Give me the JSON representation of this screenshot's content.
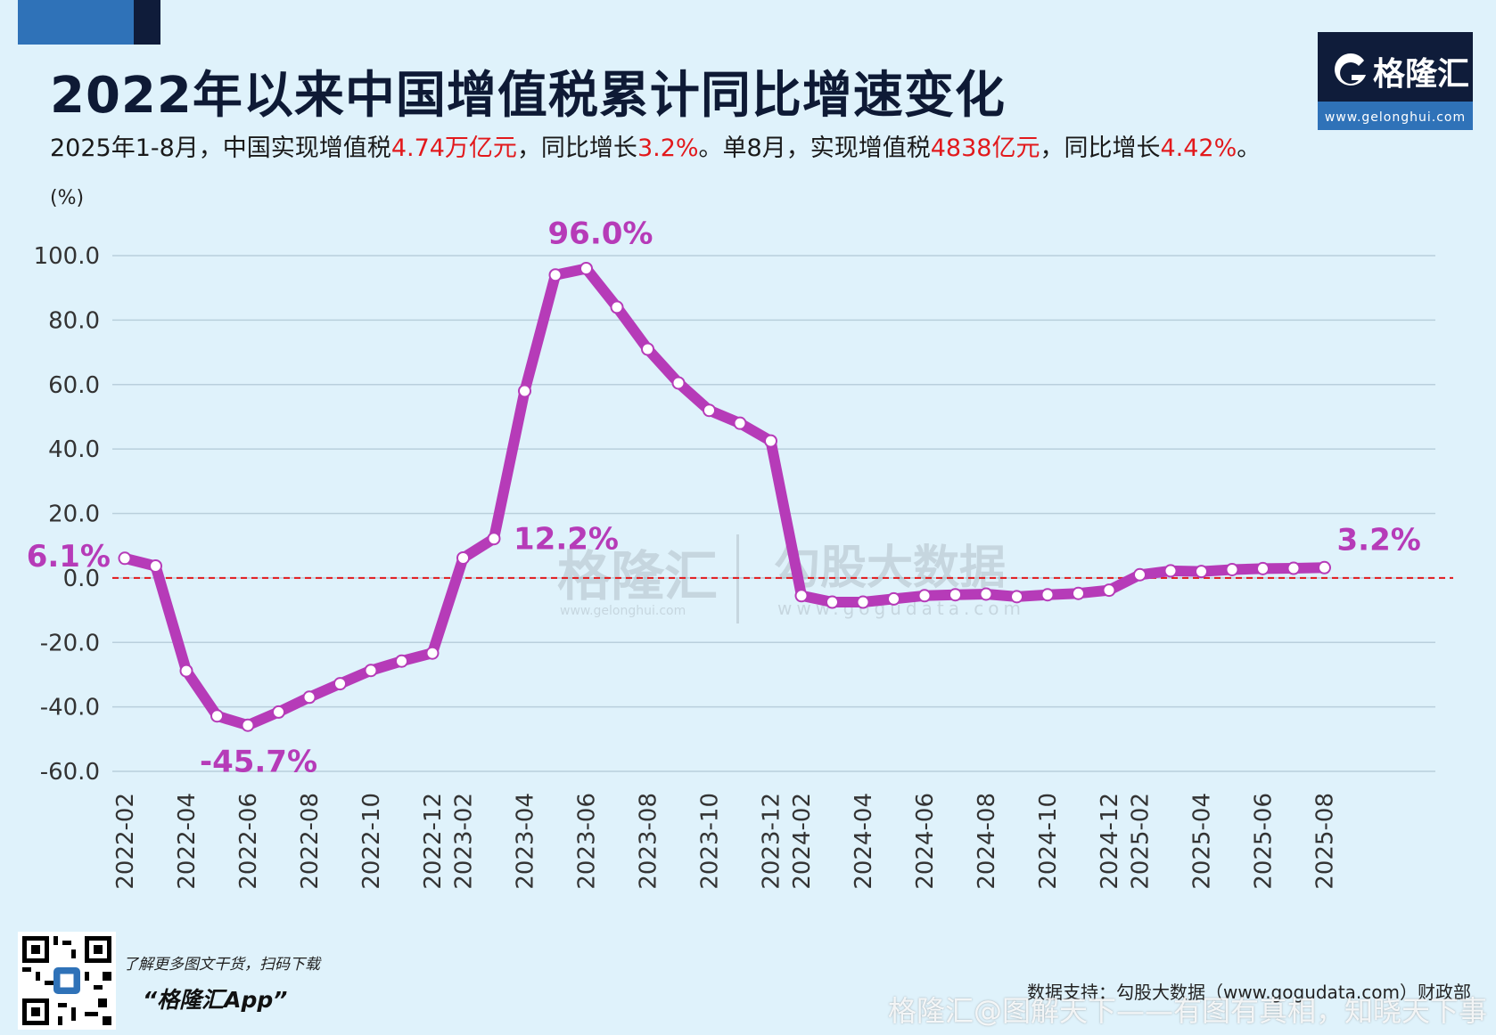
{
  "header": {
    "title": "2022年以来中国增值税累计同比增速变化",
    "subtitle_parts": [
      {
        "text": "2025年1-8月，中国实现增值税",
        "red": false
      },
      {
        "text": "4.74万亿元",
        "red": true
      },
      {
        "text": "，同比增长",
        "red": false
      },
      {
        "text": "3.2%",
        "red": true
      },
      {
        "text": "。单8月，实现增值税",
        "red": false
      },
      {
        "text": "4838亿元",
        "red": true
      },
      {
        "text": "，同比增长",
        "red": false
      },
      {
        "text": "4.42%",
        "red": true
      },
      {
        "text": "。",
        "red": false
      }
    ]
  },
  "logo": {
    "name": "格隆汇",
    "url": "www.gelonghui.com",
    "icon": "gelonghui-logo-icon"
  },
  "colors": {
    "line": "#b63bb8",
    "marker_fill": "#ffffff",
    "zero_line": "#e2191c",
    "grid": "#b9cfdc",
    "annotation": "#b63bb8"
  },
  "chart_data": {
    "type": "line",
    "ylabel": "(%)",
    "ylim": [
      -60,
      100
    ],
    "yticks": [
      "100.0",
      "80.0",
      "60.0",
      "40.0",
      "20.0",
      "0.0",
      "-20.0",
      "-40.0",
      "-60.0"
    ],
    "ytick_values": [
      100,
      80,
      60,
      40,
      20,
      0,
      -20,
      -40,
      -60
    ],
    "x": [
      "2022-02",
      "2022-03",
      "2022-04",
      "2022-05",
      "2022-06",
      "2022-07",
      "2022-08",
      "2022-09",
      "2022-10",
      "2022-11",
      "2022-12",
      "2023-02",
      "2023-03",
      "2023-04",
      "2023-05",
      "2023-06",
      "2023-07",
      "2023-08",
      "2023-09",
      "2023-10",
      "2023-11",
      "2023-12",
      "2024-02",
      "2024-03",
      "2024-04",
      "2024-05",
      "2024-06",
      "2024-07",
      "2024-08",
      "2024-09",
      "2024-10",
      "2024-11",
      "2024-12",
      "2025-02",
      "2025-03",
      "2025-04",
      "2025-05",
      "2025-06",
      "2025-07",
      "2025-08"
    ],
    "xticks": [
      "2022-02",
      "2022-04",
      "2022-06",
      "2022-08",
      "2022-10",
      "2022-12",
      "2023-02",
      "2023-04",
      "2023-06",
      "2023-08",
      "2023-10",
      "2023-12",
      "2024-02",
      "2024-04",
      "2024-06",
      "2024-08",
      "2024-10",
      "2024-12",
      "2025-02",
      "2025-04",
      "2025-06",
      "2025-08"
    ],
    "series": [
      {
        "values": [
          6.1,
          3.7,
          -28.8,
          -42.8,
          -45.7,
          -41.6,
          -37.0,
          -32.8,
          -28.7,
          -25.8,
          -23.3,
          6.2,
          12.2,
          58.0,
          94.0,
          96.0,
          84.0,
          71.0,
          60.5,
          52.0,
          48.0,
          42.5,
          -5.5,
          -7.5,
          -7.5,
          -6.5,
          -5.5,
          -5.2,
          -5.0,
          -5.8,
          -5.2,
          -4.8,
          -3.8,
          1.0,
          2.2,
          2.0,
          2.6,
          2.9,
          3.0,
          3.2
        ]
      }
    ],
    "zero_line": true,
    "annotations": [
      {
        "index": 0,
        "text": "6.1%"
      },
      {
        "index": 4,
        "text": "-45.7%"
      },
      {
        "index": 12,
        "text": "12.2%"
      },
      {
        "index": 15,
        "text": "96.0%"
      },
      {
        "index": 39,
        "text": "3.2%"
      }
    ]
  },
  "watermarks": {
    "center_brand": "格隆汇",
    "center_url": "www.gelonghui.com",
    "center_brand2": "勾股大数据",
    "center_url2": "www.gogudata.com"
  },
  "footer": {
    "qr_line1": "了解更多图文干货，扫码下载",
    "qr_line2": "“格隆汇App”",
    "source": "数据支持：勾股大数据（www.gogudata.com）财政部",
    "watermark": "格隆汇@图解天下——有图有真相，知晓天下事"
  }
}
